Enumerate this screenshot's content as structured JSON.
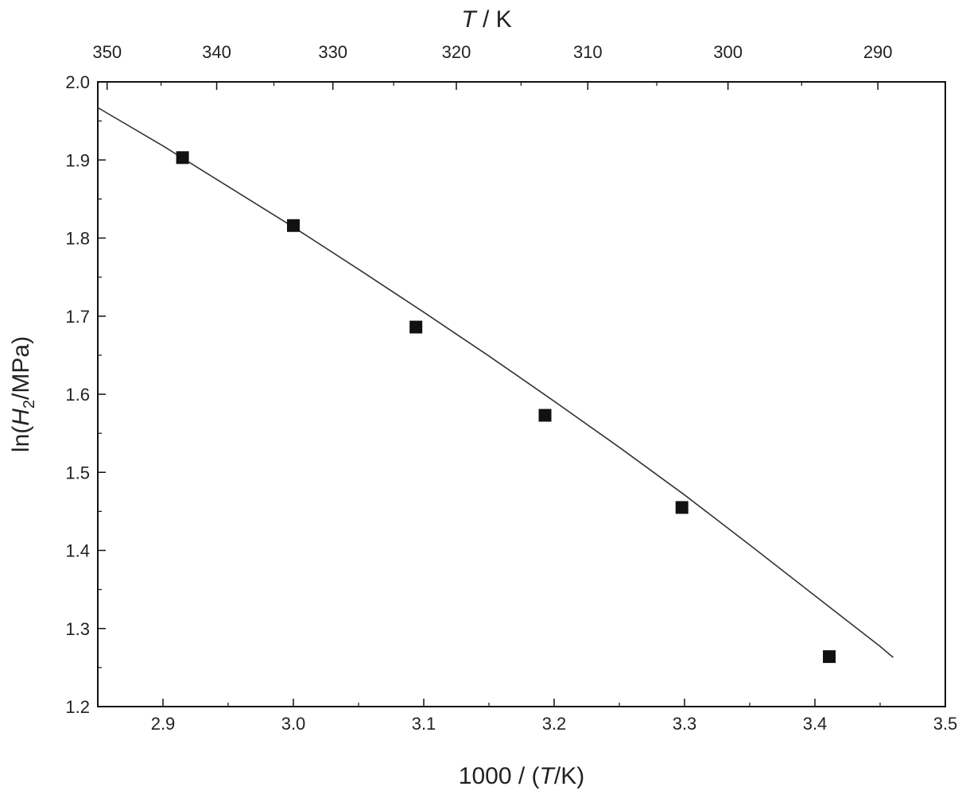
{
  "chart_data": {
    "type": "scatter",
    "xlabel": {
      "pre": "1000 / (",
      "it": "T",
      "post": "/K)"
    },
    "ylabel": {
      "pre": "ln(",
      "it": "H",
      "sub": "2",
      "post": "/MPa)"
    },
    "top_xlabel": {
      "it": "T",
      "post": " / K"
    },
    "xlim": [
      2.85,
      3.5
    ],
    "ylim": [
      1.2,
      2.0
    ],
    "x_ticks": [
      "2.9",
      "3.0",
      "3.1",
      "3.2",
      "3.3",
      "3.4",
      "3.5"
    ],
    "x_tick_values": [
      2.9,
      3.0,
      3.1,
      3.2,
      3.3,
      3.4,
      3.5
    ],
    "y_ticks": [
      "1.2",
      "1.3",
      "1.4",
      "1.5",
      "1.6",
      "1.7",
      "1.8",
      "1.9",
      "2.0"
    ],
    "y_tick_values": [
      1.2,
      1.3,
      1.4,
      1.5,
      1.6,
      1.7,
      1.8,
      1.9,
      2.0
    ],
    "top_ticks": [
      "350",
      "340",
      "330",
      "320",
      "310",
      "300",
      "290"
    ],
    "top_tick_values_K": [
      350,
      340,
      330,
      320,
      310,
      300,
      290
    ],
    "grid": false,
    "series": [
      {
        "kind": "points",
        "marker": "square",
        "x": [
          2.915,
          3.0,
          3.094,
          3.193,
          3.298,
          3.411
        ],
        "y": [
          1.903,
          1.816,
          1.686,
          1.573,
          1.455,
          1.264
        ]
      },
      {
        "kind": "line",
        "x": [
          2.85,
          2.9,
          2.95,
          3.0,
          3.05,
          3.1,
          3.15,
          3.2,
          3.25,
          3.3,
          3.35,
          3.4,
          3.45,
          3.46
        ],
        "y": [
          1.967,
          1.918,
          1.866,
          1.814,
          1.76,
          1.705,
          1.649,
          1.591,
          1.532,
          1.471,
          1.407,
          1.342,
          1.277,
          1.263
        ]
      }
    ],
    "colors": {
      "axis": "#111111",
      "marker": "#111111",
      "line": "#333333"
    }
  }
}
